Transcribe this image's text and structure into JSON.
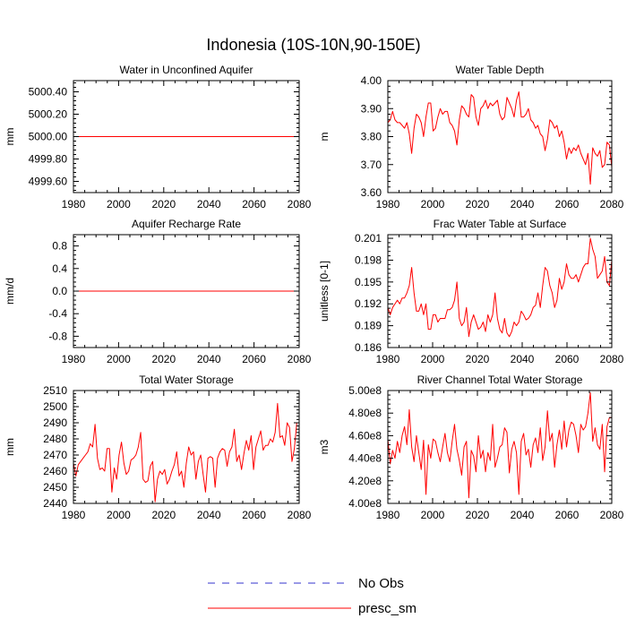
{
  "figure": {
    "title": "Indonesia (10S-10N,90-150E)"
  },
  "legend": [
    {
      "label": "No Obs",
      "color": "#3333cc",
      "style": "dashed"
    },
    {
      "label": "presc_sm",
      "color": "#ff0000",
      "style": "solid"
    }
  ],
  "chart_data": [
    {
      "type": "line",
      "title": "Water in Unconfined Aquifer",
      "ylabel": "mm",
      "xlim": [
        1980,
        2080
      ],
      "ylim": [
        4999.5,
        5000.5
      ],
      "xticks": [
        1980,
        2000,
        2020,
        2040,
        2060,
        2080
      ],
      "yticks": [
        4999.6,
        4999.8,
        5000.0,
        5000.2,
        5000.4
      ],
      "ytick_labels": [
        "4999.60",
        "4999.80",
        "5000.00",
        "5000.20",
        "5000.40"
      ],
      "series": [
        {
          "name": "presc_sm",
          "x_start": 1980,
          "x_end": 2080,
          "values": [
            5000.0,
            5000.0
          ]
        }
      ]
    },
    {
      "type": "line",
      "title": "Water Table Depth",
      "ylabel": "m",
      "xlim": [
        1980,
        2080
      ],
      "ylim": [
        3.6,
        4.0
      ],
      "xticks": [
        1980,
        2000,
        2020,
        2040,
        2060,
        2080
      ],
      "yticks": [
        3.6,
        3.7,
        3.8,
        3.9,
        4.0
      ],
      "ytick_labels": [
        "3.60",
        "3.70",
        "3.80",
        "3.90",
        "4.00"
      ],
      "series": [
        {
          "name": "presc_sm",
          "x_start": 1980,
          "x_end": 2080,
          "values": [
            3.85,
            3.86,
            3.89,
            3.86,
            3.85,
            3.85,
            3.84,
            3.83,
            3.85,
            3.81,
            3.74,
            3.83,
            3.88,
            3.87,
            3.85,
            3.8,
            3.87,
            3.92,
            3.92,
            3.82,
            3.83,
            3.87,
            3.9,
            3.88,
            3.89,
            3.89,
            3.85,
            3.84,
            3.82,
            3.77,
            3.86,
            3.91,
            3.9,
            3.88,
            3.87,
            3.95,
            3.94,
            3.87,
            3.84,
            3.9,
            3.91,
            3.93,
            3.9,
            3.92,
            3.91,
            3.92,
            3.93,
            3.88,
            3.86,
            3.87,
            3.94,
            3.92,
            3.9,
            3.87,
            3.93,
            3.96,
            3.87,
            3.87,
            3.88,
            3.9,
            3.86,
            3.85,
            3.83,
            3.84,
            3.81,
            3.8,
            3.75,
            3.79,
            3.86,
            3.85,
            3.83,
            3.84,
            3.8,
            3.82,
            3.78,
            3.72,
            3.76,
            3.74,
            3.76,
            3.75,
            3.77,
            3.74,
            3.72,
            3.7,
            3.74,
            3.63,
            3.76,
            3.74,
            3.73,
            3.75,
            3.69,
            3.7,
            3.78,
            3.77,
            3.69
          ]
        }
      ]
    },
    {
      "type": "line",
      "title": "Aquifer Recharge Rate",
      "ylabel": "mm/d",
      "xlim": [
        1980,
        2080
      ],
      "ylim": [
        -1.0,
        1.0
      ],
      "xticks": [
        1980,
        2000,
        2020,
        2040,
        2060,
        2080
      ],
      "yticks": [
        -0.8,
        -0.4,
        0.0,
        0.4,
        0.8
      ],
      "ytick_labels": [
        "-0.8",
        "-0.4",
        "0.0",
        "0.4",
        "0.8"
      ],
      "series": [
        {
          "name": "presc_sm",
          "x_start": 1980,
          "x_end": 2080,
          "values": [
            0.0,
            0.0
          ]
        }
      ]
    },
    {
      "type": "line",
      "title": "Frac Water Table at Surface",
      "ylabel": "unitless [0-1]",
      "xlim": [
        1980,
        2080
      ],
      "ylim": [
        0.186,
        0.2015
      ],
      "xticks": [
        1980,
        2000,
        2020,
        2040,
        2060,
        2080
      ],
      "yticks": [
        0.186,
        0.189,
        0.192,
        0.195,
        0.198,
        0.201
      ],
      "ytick_labels": [
        "0.186",
        "0.189",
        "0.192",
        "0.195",
        "0.198",
        "0.201"
      ],
      "series": [
        {
          "name": "presc_sm",
          "x_start": 1980,
          "x_end": 2080,
          "values": [
            0.1915,
            0.1905,
            0.1915,
            0.192,
            0.1925,
            0.192,
            0.1928,
            0.1928,
            0.1935,
            0.1945,
            0.197,
            0.1935,
            0.191,
            0.191,
            0.192,
            0.1905,
            0.192,
            0.1885,
            0.1885,
            0.1905,
            0.1905,
            0.1895,
            0.19,
            0.19,
            0.19,
            0.1912,
            0.1912,
            0.1915,
            0.1925,
            0.195,
            0.19,
            0.189,
            0.1895,
            0.1915,
            0.1875,
            0.1895,
            0.1905,
            0.1895,
            0.1885,
            0.1888,
            0.1895,
            0.1882,
            0.1905,
            0.1895,
            0.1905,
            0.1935,
            0.19,
            0.1885,
            0.188,
            0.19,
            0.188,
            0.1875,
            0.1882,
            0.1895,
            0.189,
            0.1895,
            0.191,
            0.1905,
            0.1898,
            0.19,
            0.1905,
            0.1915,
            0.1918,
            0.1935,
            0.1915,
            0.1945,
            0.197,
            0.1965,
            0.1945,
            0.1935,
            0.1915,
            0.1925,
            0.1955,
            0.194,
            0.195,
            0.1975,
            0.196,
            0.1955,
            0.1955,
            0.196,
            0.195,
            0.196,
            0.197,
            0.1975,
            0.1975,
            0.201,
            0.1995,
            0.1985,
            0.1955,
            0.196,
            0.1965,
            0.1985,
            0.195,
            0.1945,
            0.198
          ]
        }
      ]
    },
    {
      "type": "line",
      "title": "Total Water Storage",
      "ylabel": "mm",
      "xlim": [
        1980,
        2080
      ],
      "ylim": [
        2440,
        2510
      ],
      "xticks": [
        1980,
        2000,
        2020,
        2040,
        2060,
        2080
      ],
      "yticks": [
        2440,
        2450,
        2460,
        2470,
        2480,
        2490,
        2500,
        2510
      ],
      "ytick_labels": [
        "2440",
        "2450",
        "2460",
        "2470",
        "2480",
        "2490",
        "2500",
        "2510"
      ],
      "series": [
        {
          "name": "presc_sm",
          "x_start": 1980,
          "x_end": 2080,
          "values": [
            2465,
            2457,
            2464,
            2466,
            2468,
            2470,
            2472,
            2477,
            2475,
            2489,
            2468,
            2461,
            2462,
            2460,
            2474,
            2474,
            2447,
            2462,
            2455,
            2470,
            2478,
            2465,
            2458,
            2460,
            2467,
            2468,
            2470,
            2475,
            2484,
            2455,
            2453,
            2454,
            2463,
            2466,
            2441,
            2455,
            2460,
            2458,
            2461,
            2452,
            2455,
            2460,
            2464,
            2472,
            2457,
            2460,
            2450,
            2465,
            2475,
            2470,
            2472,
            2455,
            2466,
            2470,
            2458,
            2447,
            2468,
            2469,
            2468,
            2450,
            2468,
            2472,
            2474,
            2473,
            2463,
            2472,
            2475,
            2486,
            2466,
            2470,
            2461,
            2471,
            2479,
            2473,
            2482,
            2461,
            2475,
            2480,
            2485,
            2473,
            2476,
            2476,
            2480,
            2478,
            2484,
            2502,
            2481,
            2482,
            2476,
            2490,
            2487,
            2466,
            2474,
            2490,
            2490
          ]
        }
      ]
    },
    {
      "type": "line",
      "title": "River Channel Total Water Storage",
      "ylabel": "m3",
      "xlim": [
        1980,
        2080
      ],
      "ylim": [
        400000000,
        500000000
      ],
      "xticks": [
        1980,
        2000,
        2020,
        2040,
        2060,
        2080
      ],
      "yticks": [
        400000000,
        420000000,
        440000000,
        460000000,
        480000000,
        500000000
      ],
      "ytick_labels": [
        "4.00e8",
        "4.20e8",
        "4.40e8",
        "4.60e8",
        "4.80e8",
        "5.00e8"
      ],
      "series": [
        {
          "name": "presc_sm",
          "x_start": 1980,
          "x_end": 2080,
          "values": [
            457000000,
            435000000,
            447000000,
            440000000,
            455000000,
            445000000,
            460000000,
            468000000,
            452000000,
            483000000,
            450000000,
            437000000,
            460000000,
            445000000,
            430000000,
            456000000,
            408000000,
            452000000,
            440000000,
            457000000,
            455000000,
            445000000,
            437000000,
            450000000,
            462000000,
            445000000,
            437000000,
            455000000,
            470000000,
            448000000,
            438000000,
            425000000,
            450000000,
            455000000,
            405000000,
            447000000,
            442000000,
            428000000,
            460000000,
            440000000,
            447000000,
            428000000,
            445000000,
            438000000,
            470000000,
            432000000,
            440000000,
            450000000,
            452000000,
            467000000,
            463000000,
            427000000,
            448000000,
            455000000,
            445000000,
            408000000,
            455000000,
            462000000,
            443000000,
            448000000,
            432000000,
            452000000,
            458000000,
            445000000,
            467000000,
            438000000,
            450000000,
            482000000,
            455000000,
            462000000,
            432000000,
            452000000,
            465000000,
            448000000,
            473000000,
            450000000,
            465000000,
            472000000,
            470000000,
            460000000,
            445000000,
            470000000,
            465000000,
            468000000,
            480000000,
            498000000,
            455000000,
            467000000,
            452000000,
            448000000,
            470000000,
            428000000,
            468000000,
            476000000,
            476000000
          ]
        }
      ]
    }
  ]
}
